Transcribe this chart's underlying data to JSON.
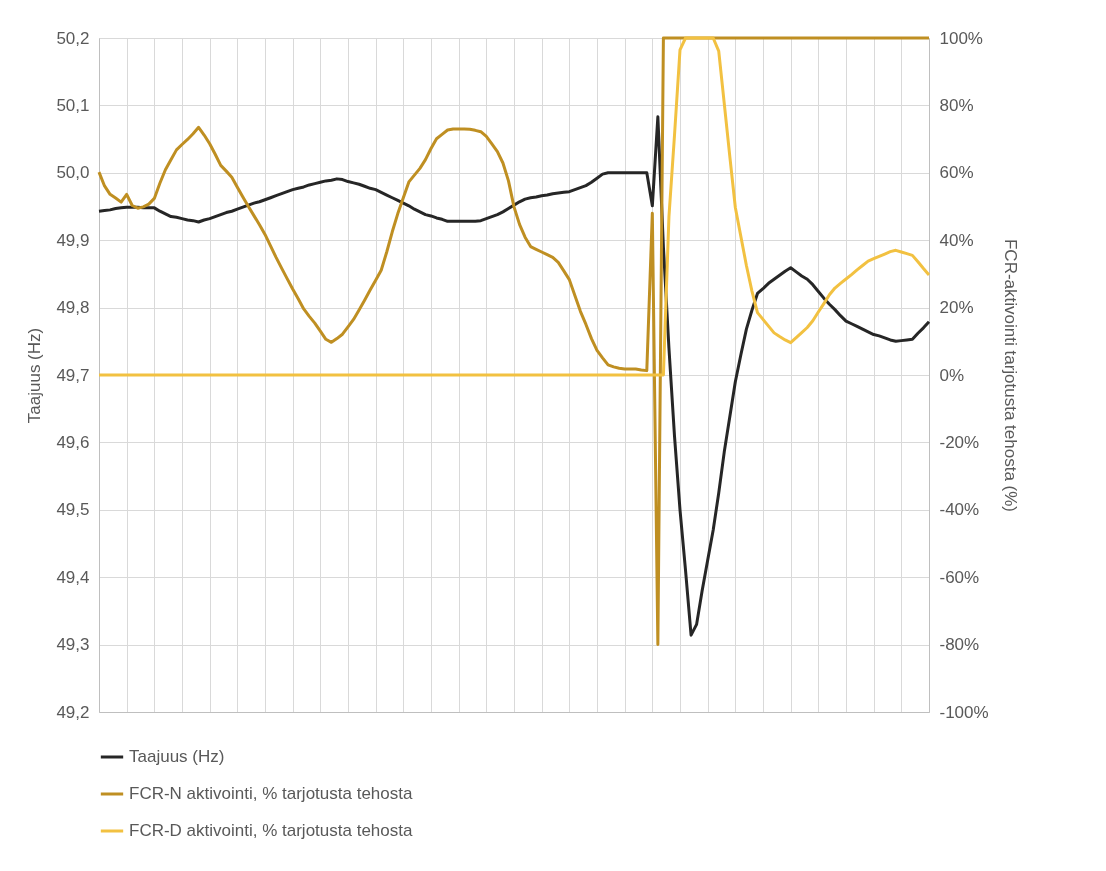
{
  "chart_data": {
    "type": "line",
    "ylabel": "Taajuus (Hz)",
    "y2label": "FCR-aktivointi tarjotusta tehosta (%)",
    "categories": [
      null,
      null,
      null,
      null,
      null,
      null,
      null,
      null,
      null,
      null,
      null,
      null,
      null,
      null,
      null,
      null,
      null,
      null,
      null,
      null,
      null,
      null,
      null,
      null,
      null,
      null,
      null,
      null,
      null,
      null,
      null,
      null,
      null,
      null,
      null,
      null,
      null,
      null,
      null,
      null,
      null,
      null,
      null,
      null,
      null,
      null,
      null,
      null,
      null,
      null,
      null,
      null,
      null,
      null,
      null,
      null,
      null,
      null,
      null,
      null,
      null,
      null,
      null,
      null,
      null,
      null,
      null,
      null,
      null,
      null,
      null,
      null,
      null,
      null,
      null,
      null,
      null,
      null,
      null,
      null,
      null,
      null,
      null,
      null,
      null,
      null,
      null,
      null,
      null,
      null,
      null,
      null,
      null,
      null,
      null,
      null,
      null,
      null,
      null,
      null,
      null,
      null,
      null,
      null,
      null,
      null,
      null,
      null,
      null,
      null,
      null,
      null,
      null,
      null,
      null,
      null,
      null,
      null,
      null,
      null,
      null,
      null,
      null,
      null,
      null,
      null,
      null,
      null,
      null,
      null,
      null,
      null,
      null,
      null,
      null,
      null,
      null,
      null,
      null,
      null,
      null,
      null,
      null,
      null,
      null,
      null,
      null,
      null,
      null,
      null,
      null
    ],
    "ylim": [
      49.2,
      50.2
    ],
    "yticks": [
      {
        "value": 49.2,
        "label": "49,2"
      },
      {
        "value": 49.3,
        "label": "49,3"
      },
      {
        "value": 49.4,
        "label": "49,4"
      },
      {
        "value": 49.5,
        "label": "49,5"
      },
      {
        "value": 49.6,
        "label": "49,6"
      },
      {
        "value": 49.7,
        "label": "49,7"
      },
      {
        "value": 49.8,
        "label": "49,8"
      },
      {
        "value": 49.9,
        "label": "49,9"
      },
      {
        "value": 50.0,
        "label": "50,0"
      },
      {
        "value": 50.1,
        "label": "50,1"
      },
      {
        "value": 50.2,
        "label": "50,2"
      }
    ],
    "y2lim": [
      -100,
      100
    ],
    "y2ticks": [
      {
        "value": -100,
        "label": "-100%"
      },
      {
        "value": -80,
        "label": "-80%"
      },
      {
        "value": -60,
        "label": "-60%"
      },
      {
        "value": -40,
        "label": "-40%"
      },
      {
        "value": -20,
        "label": "-20%"
      },
      {
        "value": 0,
        "label": "0%"
      },
      {
        "value": 20,
        "label": "20%"
      },
      {
        "value": 40,
        "label": "40%"
      },
      {
        "value": 60,
        "label": "60%"
      },
      {
        "value": 80,
        "label": "80%"
      },
      {
        "value": 100,
        "label": "100%"
      }
    ],
    "grid": true,
    "legend": "bottom",
    "series": [
      {
        "name": "Taajuus (Hz)",
        "color": "#262626",
        "axis": "y",
        "values": [
          49.943,
          49.944,
          49.945,
          49.947,
          49.948,
          49.949,
          49.949,
          49.949,
          49.948,
          49.948,
          49.948,
          49.943,
          49.939,
          49.935,
          49.934,
          49.932,
          49.93,
          49.929,
          49.927,
          49.93,
          49.932,
          49.935,
          49.938,
          49.941,
          49.943,
          49.946,
          49.949,
          49.952,
          49.955,
          49.957,
          49.96,
          49.963,
          49.966,
          49.969,
          49.972,
          49.975,
          49.977,
          49.979,
          49.982,
          49.984,
          49.986,
          49.988,
          49.989,
          49.991,
          49.99,
          49.987,
          49.985,
          49.983,
          49.98,
          49.977,
          49.975,
          49.971,
          49.967,
          49.963,
          49.959,
          49.955,
          49.951,
          49.946,
          49.942,
          49.938,
          49.936,
          49.933,
          49.931,
          49.928,
          49.928,
          49.928,
          49.928,
          49.928,
          49.928,
          49.929,
          49.932,
          49.935,
          49.938,
          49.942,
          49.947,
          49.952,
          49.957,
          49.961,
          49.963,
          49.964,
          49.966,
          49.967,
          49.969,
          49.97,
          49.971,
          49.972,
          49.975,
          49.978,
          49.981,
          49.986,
          49.992,
          49.998,
          50.0,
          50.0,
          50.0,
          50.0,
          50.0,
          50.0,
          50.0,
          50.0,
          49.951,
          50.083,
          49.89,
          49.74,
          49.61,
          49.5,
          49.41,
          49.314,
          49.33,
          49.38,
          49.425,
          49.47,
          49.525,
          49.586,
          49.638,
          49.69,
          49.73,
          49.768,
          49.796,
          49.821,
          49.828,
          49.836,
          49.842,
          49.848,
          49.854,
          49.859,
          49.853,
          49.847,
          49.842,
          49.834,
          49.824,
          49.814,
          49.805,
          49.797,
          49.788,
          49.78,
          49.776,
          49.772,
          49.768,
          49.764,
          49.76,
          49.758,
          49.755,
          49.752,
          49.75,
          49.751,
          49.752,
          49.753,
          49.762,
          49.77,
          49.779
        ]
      },
      {
        "name": "FCR-N aktivointi, % tarjotusta tehosta",
        "color": "#bf8f22",
        "axis": "y2",
        "values": [
          60.2,
          56.1,
          53.6,
          52.5,
          51.3,
          53.6,
          50.3,
          49.5,
          49.9,
          50.7,
          52.4,
          56.9,
          60.9,
          63.9,
          66.8,
          68.4,
          69.9,
          71.6,
          73.5,
          71.2,
          68.6,
          65.5,
          62.2,
          60.5,
          58.7,
          55.7,
          52.8,
          50.0,
          47.3,
          44.6,
          41.7,
          38.3,
          34.9,
          31.7,
          28.6,
          25.5,
          22.6,
          19.6,
          17.4,
          15.4,
          13.0,
          10.6,
          9.7,
          10.8,
          12.1,
          14.3,
          16.5,
          19.3,
          22.2,
          25.2,
          28.1,
          31.1,
          36.5,
          42.5,
          47.9,
          52.6,
          57.3,
          59.3,
          61.3,
          63.9,
          67.2,
          70.1,
          71.4,
          72.7,
          73.0,
          73.0,
          73.0,
          72.9,
          72.6,
          72.2,
          70.8,
          68.6,
          66.3,
          62.9,
          57.6,
          49.9,
          44.7,
          40.9,
          38.1,
          37.3,
          36.5,
          35.7,
          34.9,
          33.4,
          30.9,
          28.3,
          23.6,
          18.9,
          15.0,
          10.8,
          7.3,
          5.1,
          3.0,
          2.4,
          2.0,
          1.8,
          1.8,
          1.8,
          1.5,
          1.3,
          48.0,
          -80,
          100,
          100,
          100,
          100,
          100,
          100,
          100,
          100,
          100,
          100,
          100,
          100,
          100,
          100,
          100,
          100,
          100,
          100,
          100,
          100,
          100,
          100,
          100,
          100,
          100,
          100,
          100,
          100,
          100,
          100,
          100,
          100,
          100,
          100,
          100,
          100,
          100,
          100,
          100,
          100,
          100,
          100,
          100,
          100,
          100,
          100,
          100,
          100,
          100
        ]
      },
      {
        "name": "FCR-D aktivointi, % tarjotusta tehosta",
        "color": "#f2c141",
        "axis": "y2",
        "values": [
          0,
          0,
          0,
          0,
          0,
          0,
          0,
          0,
          0,
          0,
          0,
          0,
          0,
          0,
          0,
          0,
          0,
          0,
          0,
          0,
          0,
          0,
          0,
          0,
          0,
          0,
          0,
          0,
          0,
          0,
          0,
          0,
          0,
          0,
          0,
          0,
          0,
          0,
          0,
          0,
          0,
          0,
          0,
          0,
          0,
          0,
          0,
          0,
          0,
          0,
          0,
          0,
          0,
          0,
          0,
          0,
          0,
          0,
          0,
          0,
          0,
          0,
          0,
          0,
          0,
          0,
          0,
          0,
          0,
          0,
          0,
          0,
          0,
          0,
          0,
          0,
          0,
          0,
          0,
          0,
          0,
          0,
          0,
          0,
          0,
          0,
          0,
          0,
          0,
          0,
          0,
          0,
          0,
          0,
          0,
          0,
          0,
          0,
          0,
          0,
          0,
          0,
          0,
          46.9,
          71.0,
          96.5,
          100.0,
          100.0,
          100.0,
          100.0,
          100.0,
          100.0,
          96.1,
          80.5,
          64.9,
          49.7,
          41.1,
          32.5,
          24.9,
          18.5,
          16.5,
          14.5,
          12.5,
          11.4,
          10.4,
          9.6,
          11.1,
          12.6,
          14.1,
          16.1,
          18.7,
          21.2,
          23.8,
          25.8,
          27.2,
          28.5,
          29.8,
          31.2,
          32.5,
          33.8,
          34.5,
          35.2,
          35.9,
          36.6,
          37.0,
          36.5,
          36.0,
          35.5,
          33.6,
          31.6,
          29.7
        ]
      }
    ]
  }
}
